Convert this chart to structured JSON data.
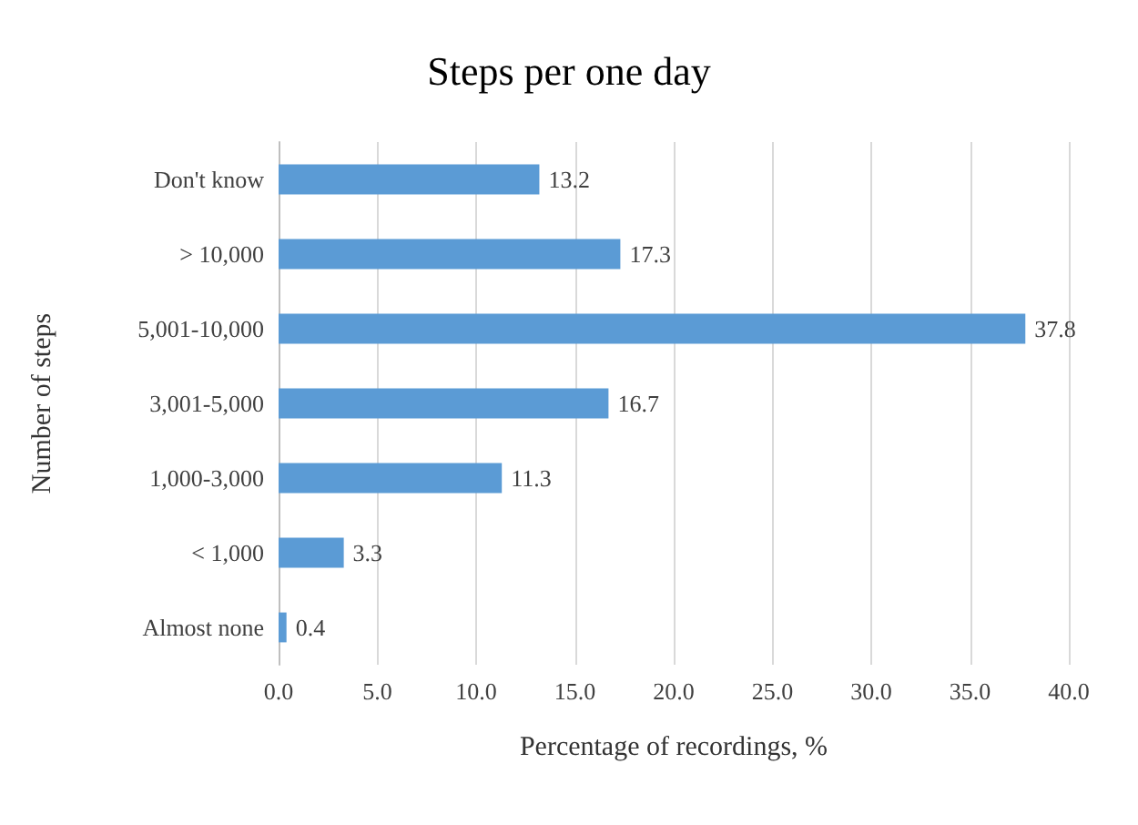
{
  "chart_data": {
    "type": "bar",
    "orientation": "horizontal",
    "title": "Steps per one day",
    "xlabel": "Percentage of recordings, %",
    "ylabel": "Number of steps",
    "categories": [
      "Don't know",
      "> 10,000",
      "5,001-10,000",
      "3,001-5,000",
      "1,000-3,000",
      "< 1,000",
      "Almost none"
    ],
    "values": [
      13.2,
      17.3,
      37.8,
      16.7,
      11.3,
      3.3,
      0.4
    ],
    "color": "#5b9bd5",
    "xlim": [
      0,
      40
    ],
    "xticks": [
      {
        "value": 0,
        "label": "0.0"
      },
      {
        "value": 5,
        "label": "5.0"
      },
      {
        "value": 10,
        "label": "10.0"
      },
      {
        "value": 15,
        "label": "15.0"
      },
      {
        "value": 20,
        "label": "20.0"
      },
      {
        "value": 25,
        "label": "25.0"
      },
      {
        "value": 30,
        "label": "30.0"
      },
      {
        "value": 35,
        "label": "35.0"
      },
      {
        "value": 40,
        "label": "40.0"
      }
    ],
    "grid": "x",
    "data_labels": true
  }
}
